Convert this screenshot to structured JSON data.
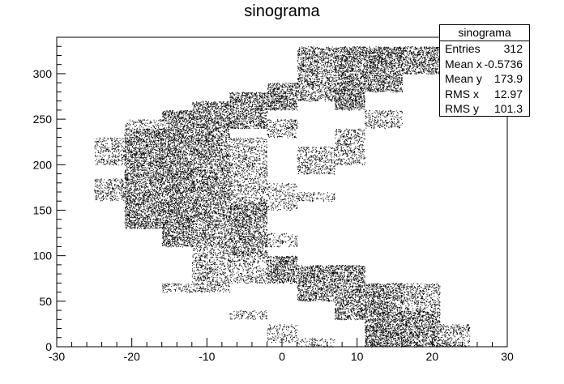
{
  "chart_data": {
    "type": "heatmap",
    "title": "sinograma",
    "xlabel": "",
    "ylabel": "",
    "xlim": [
      -30,
      30
    ],
    "ylim": [
      0,
      340
    ],
    "x_ticks": [
      -30,
      -20,
      -10,
      0,
      10,
      20,
      30
    ],
    "y_ticks": [
      0,
      50,
      100,
      150,
      200,
      250,
      300
    ],
    "x_bin_edges": [
      -25,
      -21,
      -16,
      -12,
      -7,
      -2,
      2,
      7,
      11,
      16,
      21,
      25
    ],
    "y_bin_edges": [
      0,
      40,
      80,
      120,
      160,
      200,
      240,
      280,
      320,
      330
    ],
    "bins": [
      {
        "x": [
          -25,
          -21
        ],
        "y": [
          200,
          230
        ],
        "d": 0.45
      },
      {
        "x": [
          -25,
          -21
        ],
        "y": [
          160,
          185
        ],
        "d": 0.5
      },
      {
        "x": [
          -21,
          -16
        ],
        "y": [
          130,
          240
        ],
        "d": 0.9
      },
      {
        "x": [
          -21,
          -16
        ],
        "y": [
          240,
          250
        ],
        "d": 0.35
      },
      {
        "x": [
          -16,
          -12
        ],
        "y": [
          110,
          260
        ],
        "d": 0.95
      },
      {
        "x": [
          -16,
          -12
        ],
        "y": [
          60,
          70
        ],
        "d": 0.45
      },
      {
        "x": [
          -12,
          -7
        ],
        "y": [
          140,
          270
        ],
        "d": 0.85
      },
      {
        "x": [
          -12,
          -7
        ],
        "y": [
          60,
          110
        ],
        "d": 0.5
      },
      {
        "x": [
          -12,
          -7
        ],
        "y": [
          110,
          140
        ],
        "d": 0.7
      },
      {
        "x": [
          -7,
          -2
        ],
        "y": [
          240,
          280
        ],
        "d": 0.9
      },
      {
        "x": [
          -7,
          -2
        ],
        "y": [
          100,
          160
        ],
        "d": 0.85
      },
      {
        "x": [
          -7,
          -2
        ],
        "y": [
          160,
          230
        ],
        "d": 0.45
      },
      {
        "x": [
          -7,
          -2
        ],
        "y": [
          70,
          100
        ],
        "d": 0.4
      },
      {
        "x": [
          -7,
          -2
        ],
        "y": [
          30,
          40
        ],
        "d": 0.4
      },
      {
        "x": [
          -2,
          2
        ],
        "y": [
          260,
          290
        ],
        "d": 0.95
      },
      {
        "x": [
          -2,
          2
        ],
        "y": [
          70,
          100
        ],
        "d": 0.95
      },
      {
        "x": [
          -2,
          2
        ],
        "y": [
          110,
          125
        ],
        "d": 0.35
      },
      {
        "x": [
          -2,
          2
        ],
        "y": [
          150,
          180
        ],
        "d": 0.35
      },
      {
        "x": [
          -2,
          2
        ],
        "y": [
          230,
          250
        ],
        "d": 0.5
      },
      {
        "x": [
          -2,
          2
        ],
        "y": [
          5,
          25
        ],
        "d": 0.35
      },
      {
        "x": [
          2,
          7
        ],
        "y": [
          270,
          330
        ],
        "d": 0.7
      },
      {
        "x": [
          2,
          7
        ],
        "y": [
          50,
          90
        ],
        "d": 0.85
      },
      {
        "x": [
          2,
          7
        ],
        "y": [
          190,
          220
        ],
        "d": 0.5
      },
      {
        "x": [
          2,
          7
        ],
        "y": [
          160,
          170
        ],
        "d": 0.4
      },
      {
        "x": [
          2,
          7
        ],
        "y": [
          0,
          10
        ],
        "d": 0.3
      },
      {
        "x": [
          7,
          11
        ],
        "y": [
          260,
          330
        ],
        "d": 0.95
      },
      {
        "x": [
          7,
          11
        ],
        "y": [
          30,
          90
        ],
        "d": 0.85
      },
      {
        "x": [
          7,
          11
        ],
        "y": [
          200,
          240
        ],
        "d": 0.5
      },
      {
        "x": [
          11,
          16
        ],
        "y": [
          280,
          330
        ],
        "d": 0.95
      },
      {
        "x": [
          11,
          16
        ],
        "y": [
          0,
          70
        ],
        "d": 0.95
      },
      {
        "x": [
          11,
          16
        ],
        "y": [
          240,
          260
        ],
        "d": 0.45
      },
      {
        "x": [
          16,
          21
        ],
        "y": [
          300,
          330
        ],
        "d": 0.85
      },
      {
        "x": [
          16,
          21
        ],
        "y": [
          0,
          40
        ],
        "d": 0.9
      },
      {
        "x": [
          16,
          21
        ],
        "y": [
          40,
          70
        ],
        "d": 0.5
      },
      {
        "x": [
          21,
          25
        ],
        "y": [
          0,
          25
        ],
        "d": 0.5
      },
      {
        "x": [
          21,
          25
        ],
        "y": [
          290,
          320
        ],
        "d": 0.45
      }
    ],
    "stats": {
      "title": "sinograma",
      "rows": [
        {
          "label": "Entries",
          "value": "312"
        },
        {
          "label": "Mean x",
          "value": "-0.5736"
        },
        {
          "label": "Mean y",
          "value": "173.9"
        },
        {
          "label": "RMS x",
          "value": "12.97"
        },
        {
          "label": "RMS y",
          "value": "101.3"
        }
      ]
    }
  }
}
